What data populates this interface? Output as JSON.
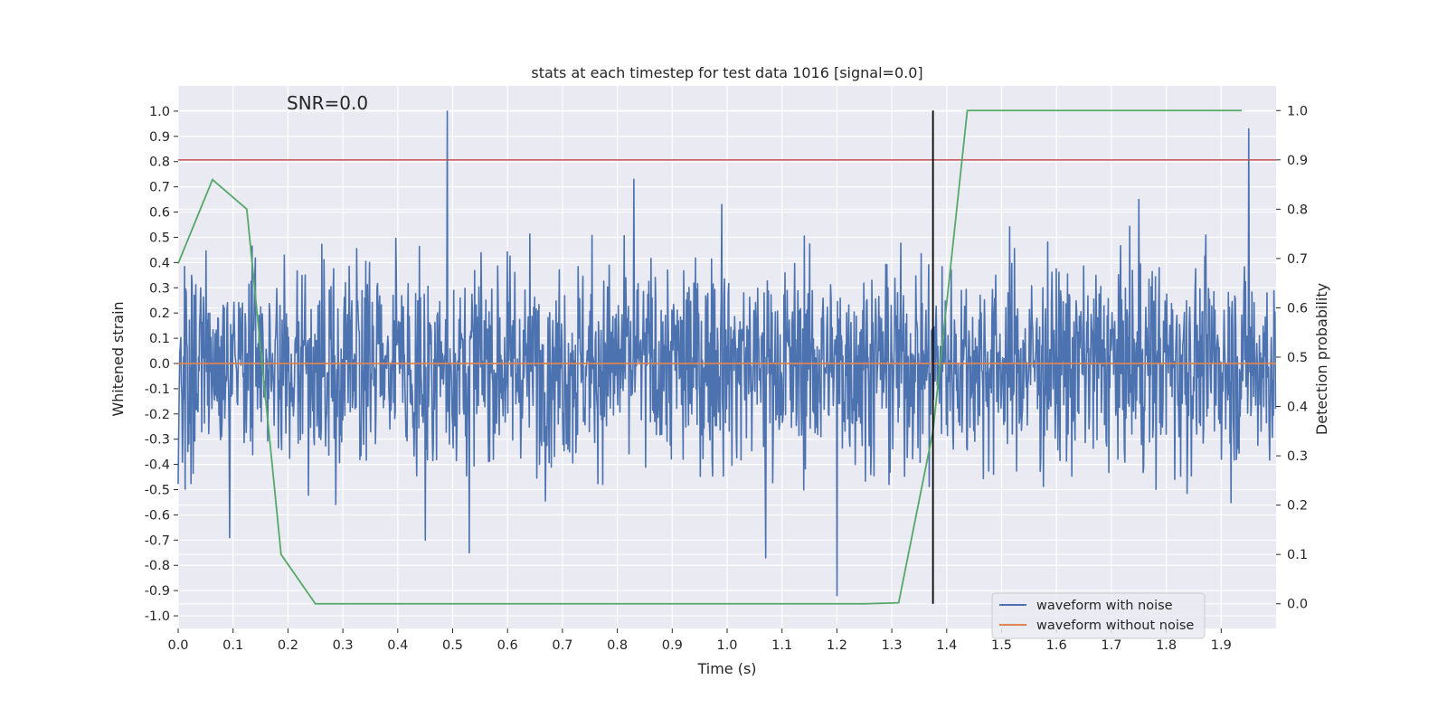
{
  "chart_data": {
    "type": "line",
    "title": "stats at each timestep for test data 1016 [signal=0.0]",
    "annotation": "SNR=0.0",
    "xlabel": "Time (s)",
    "ylabel_left": "Whitened strain",
    "ylabel_right": "Detection probability",
    "xlim": [
      0.0,
      2.0
    ],
    "ylim_left": [
      -1.05,
      1.1
    ],
    "ylim_right": [
      -0.05,
      1.05
    ],
    "x_ticks": [
      "0.0",
      "0.1",
      "0.2",
      "0.3",
      "0.4",
      "0.5",
      "0.6",
      "0.7",
      "0.8",
      "0.9",
      "1.0",
      "1.1",
      "1.2",
      "1.3",
      "1.4",
      "1.5",
      "1.6",
      "1.7",
      "1.8",
      "1.9"
    ],
    "y_ticks_left": [
      "-1.0",
      "-0.9",
      "-0.8",
      "-0.7",
      "-0.6",
      "-0.5",
      "-0.4",
      "-0.3",
      "-0.2",
      "-0.1",
      "0.0",
      "0.1",
      "0.2",
      "0.3",
      "0.4",
      "0.5",
      "0.6",
      "0.7",
      "0.8",
      "0.9",
      "1.0"
    ],
    "y_ticks_right": [
      "0.0",
      "0.1",
      "0.2",
      "0.3",
      "0.4",
      "0.5",
      "0.6",
      "0.7",
      "0.8",
      "0.9",
      "1.0"
    ],
    "grid": true,
    "legend": {
      "placement": "lower-right",
      "entries": [
        "waveform with noise",
        "waveform without noise"
      ]
    },
    "series": [
      {
        "name": "waveform with noise",
        "axis": "left",
        "color": "#4c72b0",
        "description_type": "noise",
        "n_points": 2048,
        "spikes": [
          [
            0.49,
            1.0
          ],
          [
            0.53,
            -0.75
          ],
          [
            0.83,
            0.73
          ],
          [
            0.99,
            0.63
          ],
          [
            1.2,
            -0.92
          ],
          [
            1.07,
            -0.77
          ],
          [
            1.95,
            0.93
          ],
          [
            1.03,
            0.28
          ],
          [
            1.75,
            0.65
          ],
          [
            0.45,
            -0.7
          ],
          [
            0.094,
            -0.69
          ]
        ]
      },
      {
        "name": "waveform without noise",
        "axis": "left",
        "color": "#dd8452",
        "x": [
          0.0,
          2.0
        ],
        "y": [
          0.0,
          0.0
        ]
      },
      {
        "axis": "right",
        "color": "#55a868",
        "x": [
          0.0,
          0.0625,
          0.125,
          0.1875,
          0.25,
          0.3125,
          0.375,
          0.4375,
          0.5,
          0.5625,
          0.625,
          0.6875,
          0.75,
          0.8125,
          0.875,
          0.9375,
          1.0,
          1.0625,
          1.125,
          1.1875,
          1.25,
          1.3125,
          1.375,
          1.4375,
          1.5,
          1.5625,
          1.625,
          1.6875,
          1.75,
          1.8125,
          1.875,
          1.9375
        ],
        "y": [
          0.69,
          0.86,
          0.8,
          0.1,
          0.0,
          0.0,
          0.0,
          0.0,
          0.0,
          0.0,
          0.0,
          0.0,
          0.0,
          0.0,
          0.0,
          0.0,
          0.0,
          0.0,
          0.0,
          0.0,
          0.0,
          0.002,
          0.35,
          1.0,
          1.0,
          1.0,
          1.0,
          1.0,
          1.0,
          1.0,
          1.0,
          1.0
        ]
      }
    ],
    "threshold_line": {
      "axis": "right",
      "y": 0.9,
      "color": "#c44e52"
    },
    "vertical_marker": {
      "x": 1.375,
      "y_range_right": [
        0.0,
        1.0
      ],
      "color": "#000000"
    }
  }
}
